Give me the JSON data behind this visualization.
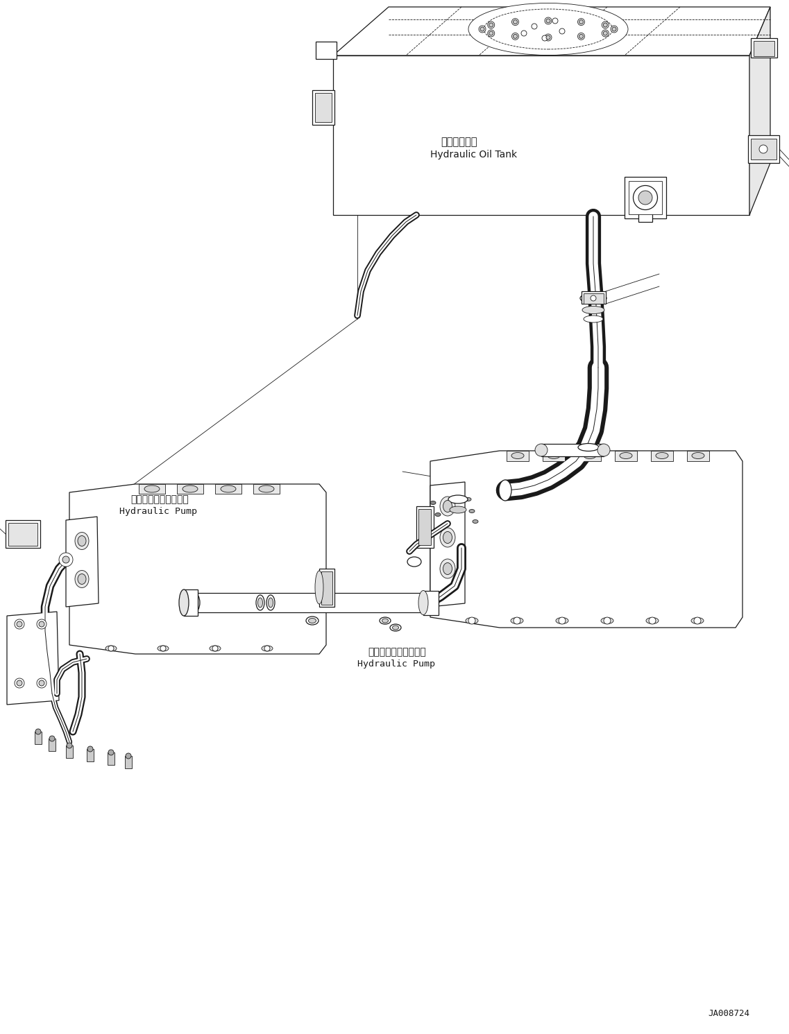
{
  "bg_color": "#ffffff",
  "line_color": "#1a1a1a",
  "label_tank_jp": "作動油タンク",
  "label_tank_en": "Hydraulic Oil Tank",
  "label_pump_left_jp": "ハイドロリックポンプ",
  "label_pump_left_en": "Hydraulic Pump",
  "label_pump_right_jp": "ハイドロリックポンプ",
  "label_pump_right_en": "Hydraulic Pump",
  "watermark": "JA008724",
  "figsize": [
    11.37,
    14.91
  ],
  "dpi": 100
}
